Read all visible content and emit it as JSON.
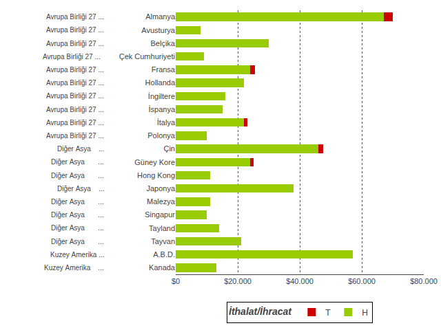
{
  "chart_data": {
    "type": "bar",
    "orientation": "horizontal",
    "stacked": true,
    "categories": [
      "Almanya",
      "Avusturya",
      "Belçika",
      "Çek Cumhuriyeti",
      "Fransa",
      "Hollanda",
      "İngiltere",
      "İspanya",
      "İtalya",
      "Polonya",
      "Çin",
      "Güney Kore",
      "Hong Kong",
      "Japonya",
      "Malezya",
      "Singapur",
      "Tayland",
      "Tayvan",
      "A.B.D.",
      "Kanada"
    ],
    "series": [
      {
        "name": "H",
        "color": "#99cc00",
        "values": [
          67000,
          8000,
          30000,
          9000,
          24000,
          22000,
          16000,
          15000,
          22000,
          10000,
          46000,
          24000,
          11000,
          38000,
          11000,
          10000,
          14000,
          21000,
          57000,
          13000
        ]
      },
      {
        "name": "T",
        "color": "#cc0000",
        "values": [
          3000,
          0,
          0,
          0,
          1500,
          0,
          0,
          0,
          1000,
          0,
          1500,
          1000,
          0,
          0,
          0,
          0,
          0,
          0,
          0,
          0
        ]
      }
    ],
    "legend_title": "İthalat/İhracat",
    "legend": "bottom",
    "annotations": [
      {
        "text": "Avrupa Birliği 27 ...",
        "category": "Almanya"
      },
      {
        "text": "Avrupa Birliği 27 ...",
        "category": "Avusturya"
      },
      {
        "text": "Avrupa Birliği 27 ...",
        "category": "Belçika"
      },
      {
        "text": "Avrupa Birliği 27 ...  ",
        "category": "Çek Cumhuriyeti"
      },
      {
        "text": "Avrupa Birliği 27 ...",
        "category": "Fransa"
      },
      {
        "text": "Avrupa Birliği 27 ...",
        "category": "Hollanda"
      },
      {
        "text": "Avrupa Birliği 27 ...",
        "category": "İngiltere"
      },
      {
        "text": "Avrupa Birliği 27 ...",
        "category": "İspanya"
      },
      {
        "text": "Avrupa Birliği 27 ...",
        "category": "İtalya"
      },
      {
        "text": "Avrupa Birliği 27 ...",
        "category": "Polonya"
      },
      {
        "text": "Diğer Asya    ...",
        "category": "Çin"
      },
      {
        "text": "Diğer Asya       ...",
        "category": "Güney Kore"
      },
      {
        "text": "Diğer Asya       ...",
        "category": "Hong Kong"
      },
      {
        "text": "Diğer Asya    ...",
        "category": "Japonya"
      },
      {
        "text": "Diğer Asya       ...",
        "category": "Malezya"
      },
      {
        "text": "Diğer Asya       ...",
        "category": "Singapur"
      },
      {
        "text": "Diğer Asya       ...",
        "category": "Tayland"
      },
      {
        "text": "Diğer Asya       ...",
        "category": "Tayvan"
      },
      {
        "text": "Kuzey Amerika ...",
        "category": "A.B.D."
      },
      {
        "text": "Kuzey Amerika    ...",
        "category": "Kanada"
      }
    ],
    "xlim": [
      0,
      80000
    ],
    "xticks": [
      {
        "value": 0,
        "label": "$0"
      },
      {
        "value": 20000,
        "label": "$20.000"
      },
      {
        "value": 40000,
        "label": "$40.000"
      },
      {
        "value": 60000,
        "label": "$60.000"
      },
      {
        "value": 80000,
        "label": "$80.000"
      }
    ],
    "grid": true
  }
}
